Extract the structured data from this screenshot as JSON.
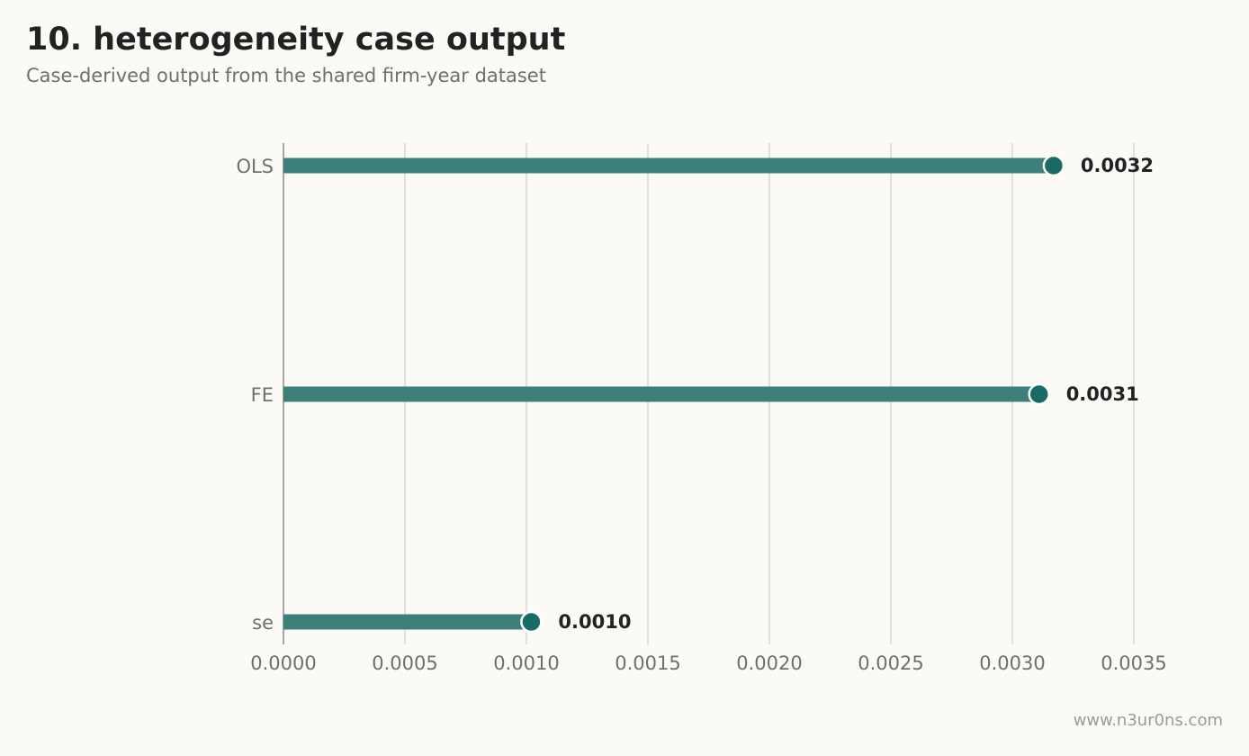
{
  "title": "10. heterogeneity case output",
  "subtitle": "Case-derived output from the shared firm-year dataset",
  "watermark": "www.n3ur0ns.com",
  "chart_data": {
    "type": "bar",
    "orientation": "horizontal",
    "style": "lollipop",
    "categories": [
      "OLS",
      "FE",
      "se"
    ],
    "values": [
      0.0032,
      0.0031,
      0.001
    ],
    "plotted_values": [
      0.00317,
      0.00311,
      0.00102
    ],
    "value_labels": [
      "0.0032",
      "0.0031",
      "0.0010"
    ],
    "xlim": [
      0,
      0.0035
    ],
    "xticks": [
      0,
      0.0005,
      0.001,
      0.0015,
      0.002,
      0.0025,
      0.003,
      0.0035
    ],
    "xtick_labels": [
      "0.0000",
      "0.0005",
      "0.0010",
      "0.0015",
      "0.0020",
      "0.0025",
      "0.0030",
      "0.0035"
    ],
    "xlabel": "",
    "ylabel": "",
    "grid": "vertical",
    "colors": {
      "bar": "#3d8079",
      "dot": "#1a6b65",
      "grid": "#d9d8d2",
      "axis": "#8a8a8a"
    }
  }
}
